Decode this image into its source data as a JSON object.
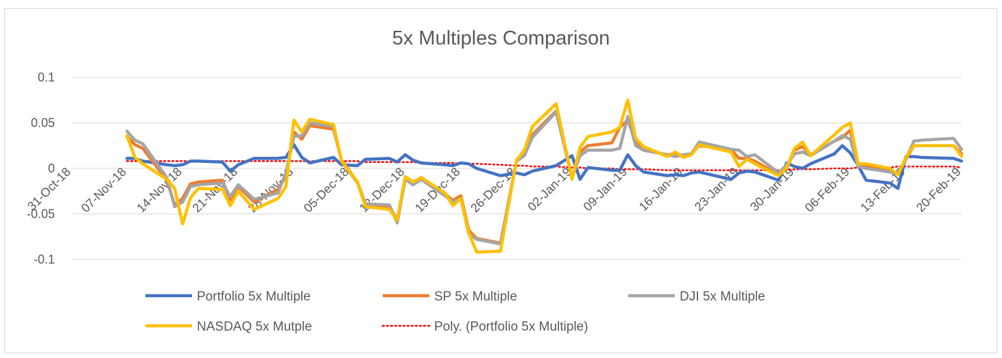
{
  "chart_data": {
    "type": "line",
    "title": "5x Multiples Comparison",
    "xlabel": "",
    "ylabel": "",
    "ylim": [
      -0.1,
      0.1
    ],
    "yticks": [
      "0.1",
      "0.05",
      "0",
      "-0.05",
      "-0.1"
    ],
    "ytick_values": [
      0.1,
      0.05,
      0,
      -0.05,
      -0.1
    ],
    "grid": true,
    "legend_position": "bottom",
    "x_tick_labels": [
      "31-Oct-18",
      "07-Nov-18",
      "14-Nov-18",
      "21-Nov-18",
      "28-Nov-18",
      "05-Dec-18",
      "12-Dec-18",
      "19-Dec-18",
      "26-Dec-18",
      "02-Jan-19",
      "09-Jan-19",
      "16-Jan-19",
      "23-Jan-19",
      "30-Jan-19",
      "06-Feb-19",
      "13-Feb-19",
      "20-Feb-19"
    ],
    "x_start": "2018-10-31",
    "x_end": "2019-02-20",
    "dates": [
      "2018-11-07",
      "2018-11-08",
      "2018-11-09",
      "2018-11-12",
      "2018-11-13",
      "2018-11-14",
      "2018-11-15",
      "2018-11-16",
      "2018-11-19",
      "2018-11-20",
      "2018-11-21",
      "2018-11-23",
      "2018-11-26",
      "2018-11-27",
      "2018-11-28",
      "2018-11-29",
      "2018-11-30",
      "2018-12-03",
      "2018-12-04",
      "2018-12-06",
      "2018-12-07",
      "2018-12-10",
      "2018-12-11",
      "2018-12-12",
      "2018-12-13",
      "2018-12-14",
      "2018-12-17",
      "2018-12-18",
      "2018-12-19",
      "2018-12-20",
      "2018-12-21",
      "2018-12-24",
      "2018-12-26",
      "2018-12-27",
      "2018-12-28",
      "2018-12-31",
      "2019-01-02",
      "2019-01-03",
      "2019-01-04",
      "2019-01-07",
      "2019-01-08",
      "2019-01-09",
      "2019-01-10",
      "2019-01-11",
      "2019-01-14",
      "2019-01-15",
      "2019-01-16",
      "2019-01-17",
      "2019-01-18",
      "2019-01-22",
      "2019-01-23",
      "2019-01-24",
      "2019-01-25",
      "2019-01-28",
      "2019-01-29",
      "2019-01-30",
      "2019-01-31",
      "2019-02-01",
      "2019-02-04",
      "2019-02-05",
      "2019-02-06",
      "2019-02-07",
      "2019-02-08",
      "2019-02-11",
      "2019-02-12",
      "2019-02-13",
      "2019-02-14",
      "2019-02-15",
      "2019-02-19",
      "2019-02-20"
    ],
    "series": [
      {
        "name": "Portfolio 5x Multiple",
        "color": "#4472C4",
        "style": "solid",
        "values": [
          0.011,
          0.011,
          0.008,
          0.004,
          0.003,
          0.004,
          0.008,
          0.008,
          0.007,
          -0.003,
          0.004,
          0.011,
          0.011,
          0.012,
          0.026,
          0.012,
          0.006,
          0.012,
          0.004,
          0.003,
          0.01,
          0.011,
          0.007,
          0.015,
          0.009,
          0.006,
          0.004,
          0.003,
          0.006,
          0.005,
          0.0,
          -0.008,
          -0.005,
          -0.007,
          -0.003,
          0.003,
          0.014,
          -0.012,
          0.001,
          -0.002,
          -0.002,
          0.015,
          0.003,
          -0.004,
          -0.008,
          -0.007,
          -0.008,
          -0.005,
          -0.004,
          -0.012,
          -0.005,
          -0.003,
          -0.004,
          -0.013,
          0.006,
          0.002,
          0.0,
          0.005,
          0.016,
          0.025,
          0.017,
          0.003,
          -0.013,
          -0.016,
          -0.022,
          0.013,
          0.013,
          0.012,
          0.011,
          0.008
        ]
      },
      {
        "name": "SP 5x Multiple",
        "color": "#ED7D31",
        "style": "solid",
        "values": [
          0.035,
          0.026,
          0.022,
          -0.013,
          -0.04,
          -0.033,
          -0.017,
          -0.015,
          -0.013,
          -0.035,
          -0.02,
          -0.037,
          -0.023,
          -0.008,
          0.04,
          0.032,
          0.047,
          0.043,
          0.009,
          -0.015,
          -0.039,
          -0.042,
          -0.057,
          -0.012,
          -0.016,
          -0.01,
          -0.028,
          -0.035,
          -0.03,
          -0.068,
          -0.077,
          -0.082,
          0.008,
          0.016,
          0.037,
          0.063,
          -0.011,
          0.018,
          0.025,
          0.028,
          0.045,
          0.053,
          0.03,
          0.02,
          0.015,
          0.016,
          0.014,
          0.016,
          0.025,
          0.021,
          0.011,
          0.011,
          0.008,
          -0.007,
          0.0,
          0.02,
          0.024,
          0.015,
          0.03,
          0.034,
          0.042,
          0.003,
          0.003,
          -0.002,
          -0.006,
          0.01,
          0.025,
          0.025,
          0.025,
          0.016
        ]
      },
      {
        "name": "DJI 5x Multiple",
        "color": "#A5A5A5",
        "style": "solid",
        "values": [
          0.041,
          0.031,
          0.027,
          -0.01,
          -0.042,
          -0.037,
          -0.02,
          -0.018,
          -0.016,
          -0.031,
          -0.018,
          -0.034,
          -0.027,
          -0.005,
          0.035,
          0.036,
          0.05,
          0.046,
          0.008,
          -0.016,
          -0.039,
          -0.04,
          -0.06,
          -0.012,
          -0.018,
          -0.012,
          -0.03,
          -0.037,
          -0.033,
          -0.072,
          -0.078,
          -0.083,
          0.008,
          0.014,
          0.034,
          0.062,
          -0.01,
          0.014,
          0.02,
          0.02,
          0.022,
          0.057,
          0.025,
          0.02,
          0.015,
          0.013,
          0.015,
          0.016,
          0.029,
          0.021,
          0.02,
          0.013,
          0.015,
          -0.005,
          0.004,
          0.016,
          0.018,
          0.014,
          0.03,
          0.036,
          0.032,
          0.002,
          0.0,
          -0.004,
          -0.006,
          0.01,
          0.03,
          0.031,
          0.033,
          0.021
        ]
      },
      {
        "name": "NASDAQ 5x Mutple",
        "color": "#FFC000",
        "style": "solid",
        "values": [
          0.036,
          0.012,
          0.005,
          -0.012,
          -0.022,
          -0.061,
          -0.032,
          -0.022,
          -0.023,
          -0.041,
          -0.025,
          -0.045,
          -0.033,
          -0.02,
          0.053,
          0.04,
          0.054,
          0.048,
          0.008,
          -0.015,
          -0.042,
          -0.045,
          -0.057,
          -0.009,
          -0.015,
          -0.01,
          -0.027,
          -0.041,
          -0.033,
          -0.071,
          -0.092,
          -0.091,
          0.009,
          0.02,
          0.046,
          0.071,
          -0.012,
          0.023,
          0.035,
          0.04,
          0.045,
          0.075,
          0.033,
          0.024,
          0.013,
          0.018,
          0.012,
          0.015,
          0.026,
          0.018,
          0.002,
          0.01,
          0.005,
          -0.008,
          0.001,
          0.022,
          0.029,
          0.014,
          0.037,
          0.045,
          0.05,
          0.005,
          0.005,
          0.0,
          -0.007,
          0.012,
          0.025,
          0.025,
          0.025,
          0.013
        ]
      },
      {
        "name": "Poly. (Portfolio 5x Multiple)",
        "color": "#FF0000",
        "style": "dotted",
        "values": [
          0.008,
          0.008,
          0.008,
          0.008,
          0.008,
          0.008,
          0.008,
          0.008,
          0.008,
          0.008,
          0.008,
          0.008,
          0.008,
          0.008,
          0.008,
          0.008,
          0.008,
          0.008,
          0.008,
          0.008,
          0.007,
          0.007,
          0.007,
          0.007,
          0.007,
          0.006,
          0.006,
          0.006,
          0.005,
          0.005,
          0.005,
          0.004,
          0.003,
          0.003,
          0.002,
          0.002,
          0.001,
          0.001,
          0.0,
          0.0,
          -0.001,
          -0.001,
          -0.001,
          -0.001,
          -0.002,
          -0.002,
          -0.002,
          -0.002,
          -0.002,
          -0.002,
          -0.002,
          -0.002,
          -0.002,
          -0.002,
          -0.002,
          -0.001,
          -0.001,
          -0.001,
          0.0,
          0.0,
          0.0,
          0.001,
          0.001,
          0.001,
          0.002,
          0.002,
          0.002,
          0.002,
          0.002,
          0.001
        ]
      }
    ]
  }
}
